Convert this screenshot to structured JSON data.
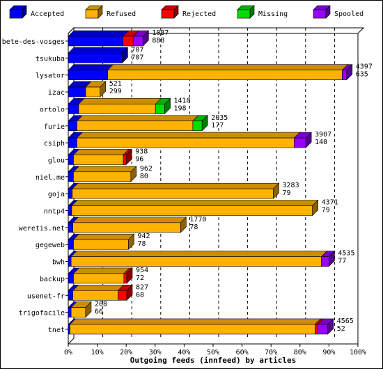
{
  "chart_data": {
    "type": "bar",
    "orientation": "horizontal",
    "stacked": true,
    "stacked_percent": true,
    "xlabel": "Outgoing feeds (innfeed) by articles",
    "xlim": [
      0,
      100
    ],
    "x_ticks": [
      "0%",
      "10%",
      "20%",
      "30%",
      "40%",
      "50%",
      "60%",
      "70%",
      "80%",
      "90%",
      "100%"
    ],
    "grid": true,
    "legend_position": "top",
    "categories": [
      "bete-des-vosges",
      "tsukuba",
      "lysator",
      "izac",
      "ortolo",
      "furie",
      "csiph",
      "glou",
      "niel.me",
      "goja",
      "nntp4",
      "weretis.net",
      "gegeweb",
      "bwh",
      "backup",
      "usenet-fr",
      "trigofacile",
      "tnet"
    ],
    "series": [
      {
        "name": "Accepted",
        "color": "#0000ff",
        "values": [
          18.9,
          18.6,
          13.6,
          6.0,
          3.6,
          3.0,
          3.0,
          1.8,
          1.8,
          1.4,
          1.2,
          1.6,
          1.8,
          1.0,
          1.8,
          1.6,
          1.0,
          0.6
        ]
      },
      {
        "name": "Refused",
        "color": "#ffb200",
        "values": [
          0,
          0,
          81.0,
          5.0,
          26.5,
          40.0,
          75.0,
          17.2,
          19.8,
          69.4,
          83.1,
          37.2,
          19.0,
          86.4,
          17.4,
          15.6,
          5.0,
          84.6
        ]
      },
      {
        "name": "Rejected",
        "color": "#ff0000",
        "values": [
          3.5,
          0,
          0,
          0,
          0,
          0,
          0,
          1.0,
          0,
          0,
          0,
          0,
          0,
          0,
          1.0,
          3.0,
          0,
          1.0
        ]
      },
      {
        "name": "Missing",
        "color": "#00dd00",
        "values": [
          0,
          0,
          0,
          0,
          3.2,
          3.2,
          0,
          0,
          0,
          0,
          0,
          0,
          0,
          0,
          0,
          0,
          0,
          0
        ]
      },
      {
        "name": "Spooled",
        "color": "#9900ff",
        "values": [
          3.4,
          0,
          1.5,
          0,
          0,
          0,
          4.0,
          0,
          0,
          0,
          0,
          0,
          0,
          2.6,
          0,
          0,
          0,
          3.4
        ]
      }
    ],
    "annotations": [
      [
        "1087",
        "888"
      ],
      [
        "707",
        "707"
      ],
      [
        "4397",
        "635"
      ],
      [
        "521",
        "299"
      ],
      [
        "1410",
        "198"
      ],
      [
        "2035",
        "177"
      ],
      [
        "3907",
        "140"
      ],
      [
        "938",
        "96"
      ],
      [
        "962",
        "80"
      ],
      [
        "3283",
        "79"
      ],
      [
        "4371",
        "79"
      ],
      [
        "1770",
        "78"
      ],
      [
        "942",
        "78"
      ],
      [
        "4535",
        "77"
      ],
      [
        "954",
        "72"
      ],
      [
        "827",
        "68"
      ],
      [
        "208",
        "66"
      ],
      [
        "4565",
        "52"
      ]
    ]
  }
}
